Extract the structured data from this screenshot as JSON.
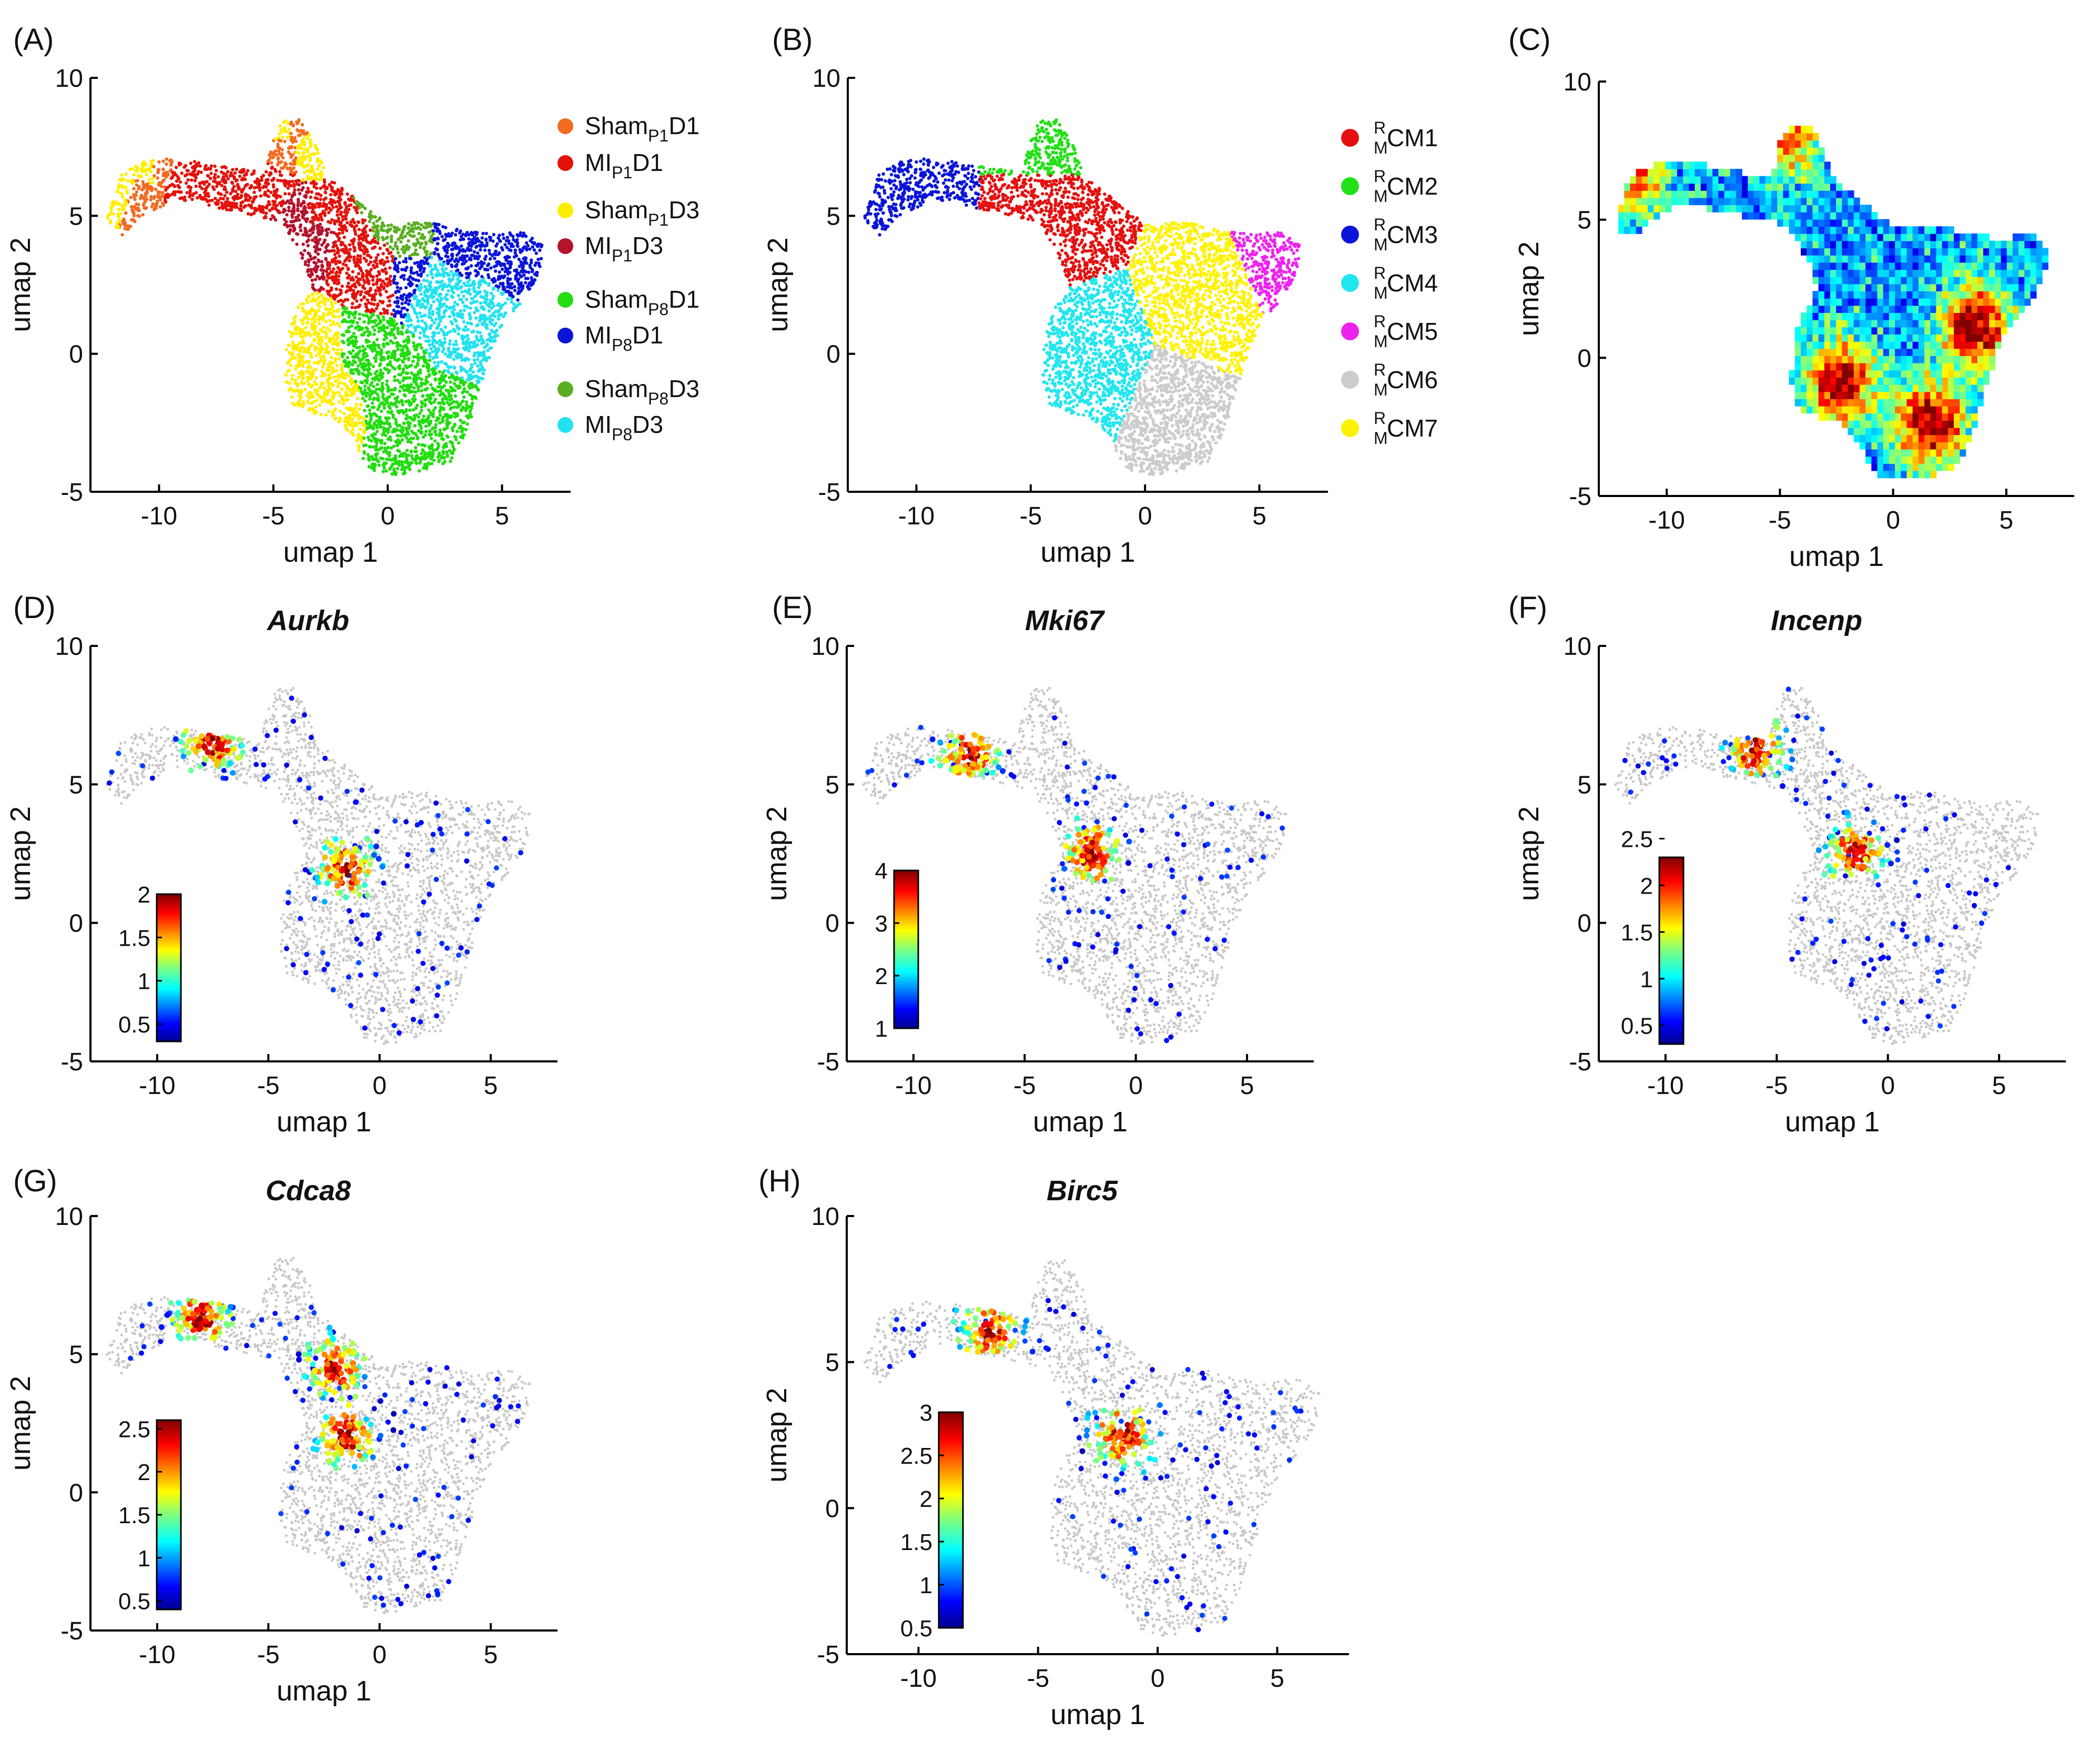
{
  "figure": {
    "background": "#ffffff"
  },
  "colors": {
    "Sham_P1D1": "#f26b21",
    "MI_P1D1": "#e3120b",
    "Sham_P1D3": "#ffee00",
    "MI_P1D3": "#b5122d",
    "Sham_P8D1": "#22dd10",
    "MI_P8D1": "#0a14d8",
    "Sham_P8D3": "#5aae22",
    "MI_P8D3": "#22e2f0",
    "RMCM1": "#e51010",
    "RMCM2": "#22e016",
    "RMCM3": "#0a14d8",
    "RMCM4": "#22e6ee",
    "RMCM5": "#ee22ee",
    "RMCM6": "#cccccc",
    "RMCM7": "#fff200",
    "background_cells": "#c8c8c8"
  },
  "chart_data": [
    {
      "panel": "A",
      "label": "(A)",
      "type": "scatter",
      "title": "",
      "xlabel": "umap 1",
      "ylabel": "umap 2",
      "xlim": [
        -13,
        8
      ],
      "ylim": [
        -5,
        10
      ],
      "xticks": [
        "-10",
        "-5",
        "0",
        "5"
      ],
      "yticks": [
        "10",
        "5",
        "0",
        "-5"
      ],
      "legend": {
        "placement": "right",
        "entries": [
          {
            "base": "Sham",
            "sub": "P1",
            "tail": "D1",
            "color": "#f26b21"
          },
          {
            "base": "MI",
            "sub": "P1",
            "tail": "D1",
            "color": "#e3120b"
          },
          {
            "base": "Sham",
            "sub": "P1",
            "tail": "D3",
            "color": "#ffee00"
          },
          {
            "base": "MI",
            "sub": "P1",
            "tail": "D3",
            "color": "#b5122d"
          },
          {
            "base": "Sham",
            "sub": "P8",
            "tail": "D1",
            "color": "#22dd10"
          },
          {
            "base": "MI",
            "sub": "P8",
            "tail": "D1",
            "color": "#0a14d8"
          },
          {
            "base": "Sham",
            "sub": "P8",
            "tail": "D3",
            "color": "#5aae22"
          },
          {
            "base": "MI",
            "sub": "P8",
            "tail": "D3",
            "color": "#22e2f0"
          }
        ]
      },
      "series": [
        {
          "name": "Sham P1 D1",
          "x": [
            -11,
            -10,
            -4.5,
            -4
          ],
          "y": [
            5.8,
            6.8,
            7.5,
            8.1
          ]
        },
        {
          "name": "MI P1 D1",
          "x": [
            -9,
            -7,
            -5,
            -3,
            -1.5,
            -0.5
          ],
          "y": [
            6.5,
            6.2,
            6,
            5,
            4,
            3
          ]
        },
        {
          "name": "Sham P1 D3",
          "x": [
            -11.5,
            -10.5,
            -4.5,
            -3.5,
            -3,
            -2.5
          ],
          "y": [
            6,
            6.8,
            8,
            7.5,
            0,
            -1.5
          ]
        },
        {
          "name": "MI P1 D3",
          "x": [
            -4,
            -3
          ],
          "y": [
            5,
            4.5
          ]
        },
        {
          "name": "Sham P8 D1",
          "x": [
            -1,
            0,
            1,
            2,
            3
          ],
          "y": [
            0,
            -1,
            -2.5,
            -3.5,
            -2.5
          ]
        },
        {
          "name": "MI P8 D1",
          "x": [
            1,
            3,
            5,
            6
          ],
          "y": [
            3,
            4,
            4.5,
            4
          ]
        },
        {
          "name": "Sham P8 D3",
          "x": [
            0,
            1
          ],
          "y": [
            5,
            4
          ]
        },
        {
          "name": "MI P8 D3",
          "x": [
            1,
            2,
            3,
            4
          ],
          "y": [
            4,
            2.5,
            1.5,
            0.5
          ]
        }
      ]
    },
    {
      "panel": "B",
      "label": "(B)",
      "type": "scatter",
      "title": "",
      "xlabel": "umap 1",
      "ylabel": "umap 2",
      "xlim": [
        -13,
        8
      ],
      "ylim": [
        -5,
        10
      ],
      "xticks": [
        "-10",
        "-5",
        "0",
        "5"
      ],
      "yticks": [
        "10",
        "5",
        "0",
        "-5"
      ],
      "legend": {
        "placement": "right",
        "entries": [
          {
            "sup": "R",
            "sub": "M",
            "tail": "CM1",
            "color": "#e51010"
          },
          {
            "sup": "R",
            "sub": "M",
            "tail": "CM2",
            "color": "#22e016"
          },
          {
            "sup": "R",
            "sub": "M",
            "tail": "CM3",
            "color": "#0a14d8"
          },
          {
            "sup": "R",
            "sub": "M",
            "tail": "CM4",
            "color": "#22e6ee"
          },
          {
            "sup": "R",
            "sub": "M",
            "tail": "CM5",
            "color": "#ee22ee"
          },
          {
            "sup": "R",
            "sub": "M",
            "tail": "CM6",
            "color": "#cccccc"
          },
          {
            "sup": "R",
            "sub": "M",
            "tail": "CM7",
            "color": "#fff200"
          }
        ]
      },
      "clusters": [
        {
          "name": "RMCM1",
          "center": [
            -4,
            5.5
          ]
        },
        {
          "name": "RMCM2",
          "center": [
            -4,
            7.5
          ]
        },
        {
          "name": "RMCM3",
          "center": [
            -10.5,
            6
          ]
        },
        {
          "name": "RMCM4",
          "center": [
            -2.5,
            -0.5
          ]
        },
        {
          "name": "RMCM5",
          "center": [
            6,
            3.5
          ]
        },
        {
          "name": "RMCM6",
          "center": [
            1.5,
            -2.5
          ]
        },
        {
          "name": "RMCM7",
          "center": [
            3,
            2
          ]
        }
      ]
    },
    {
      "panel": "C",
      "label": "(C)",
      "type": "heatmap",
      "title": "",
      "xlabel": "umap 1",
      "ylabel": "umap 2",
      "xlim": [
        -13,
        8
      ],
      "ylim": [
        -5,
        10
      ],
      "xticks": [
        "-10",
        "-5",
        "0",
        "5"
      ],
      "yticks": [
        "10",
        "5",
        "0",
        "-5"
      ],
      "colormap": "jet",
      "hotspots": [
        {
          "x": 1.5,
          "y": -2.5,
          "level": "high"
        },
        {
          "x": -2.5,
          "y": -1,
          "level": "high"
        },
        {
          "x": 3.5,
          "y": 1,
          "level": "high"
        },
        {
          "x": -11.5,
          "y": 6.5,
          "level": "medium"
        },
        {
          "x": -4.5,
          "y": 8,
          "level": "medium"
        }
      ]
    },
    {
      "panel": "D",
      "label": "(D)",
      "type": "scatter",
      "title": "Aurkb",
      "xlabel": "umap 1",
      "ylabel": "umap 2",
      "xlim": [
        -13,
        8
      ],
      "ylim": [
        -5,
        10
      ],
      "xticks": [
        "-10",
        "-5",
        "0",
        "5"
      ],
      "yticks": [
        "10",
        "5",
        "0",
        "-5"
      ],
      "colorbar": {
        "range": [
          0.3,
          2.0
        ],
        "ticks": [
          "2",
          "1.5",
          "1",
          "0.5"
        ],
        "placement": "lower-left"
      },
      "expression_regions": [
        {
          "x": -1.5,
          "y": 2,
          "level": "high"
        },
        {
          "x": -7.5,
          "y": 6.5,
          "level": "high"
        }
      ]
    },
    {
      "panel": "E",
      "label": "(E)",
      "type": "scatter",
      "title": "Mki67",
      "xlabel": "umap 1",
      "ylabel": "umap 2",
      "xlim": [
        -13,
        8
      ],
      "ylim": [
        -5,
        10
      ],
      "xticks": [
        "-10",
        "-5",
        "0",
        "5"
      ],
      "yticks": [
        "10",
        "5",
        "0",
        "-5"
      ],
      "colorbar": {
        "range": [
          1,
          4
        ],
        "ticks": [
          "4",
          "3",
          "2",
          "1"
        ],
        "placement": "lower-left"
      },
      "expression_regions": [
        {
          "x": -2,
          "y": 2.5,
          "level": "medium"
        },
        {
          "x": -7.5,
          "y": 6,
          "level": "medium"
        }
      ]
    },
    {
      "panel": "F",
      "label": "(F)",
      "type": "scatter",
      "title": "Incenp",
      "xlabel": "umap 1",
      "ylabel": "umap 2",
      "xlim": [
        -13,
        8
      ],
      "ylim": [
        -5,
        10
      ],
      "xticks": [
        "-10",
        "-5",
        "0",
        "5"
      ],
      "yticks": [
        "10",
        "5",
        "0",
        "-5"
      ],
      "colorbar": {
        "range": [
          0.3,
          2.3
        ],
        "ticks": [
          "2.5",
          "2",
          "1.5",
          "1",
          "0.5"
        ],
        "placement": "lower-left"
      },
      "expression_regions": [
        {
          "x": -1.5,
          "y": 2.5,
          "level": "high"
        },
        {
          "x": -6,
          "y": 6.2,
          "level": "high"
        }
      ]
    },
    {
      "panel": "G",
      "label": "(G)",
      "type": "scatter",
      "title": "Cdca8",
      "xlabel": "umap 1",
      "ylabel": "umap 2",
      "xlim": [
        -13,
        8
      ],
      "ylim": [
        -5,
        10
      ],
      "xticks": [
        "-10",
        "-5",
        "0",
        "5"
      ],
      "yticks": [
        "10",
        "5",
        "0",
        "-5"
      ],
      "colorbar": {
        "range": [
          0.4,
          2.6
        ],
        "ticks": [
          "2.5",
          "2",
          "1.5",
          "1",
          "0.5"
        ],
        "placement": "lower-left"
      },
      "expression_regions": [
        {
          "x": -8,
          "y": 6.3,
          "level": "high"
        },
        {
          "x": -1.5,
          "y": 2,
          "level": "high"
        },
        {
          "x": -2,
          "y": 4.5,
          "level": "high"
        }
      ]
    },
    {
      "panel": "H",
      "label": "(H)",
      "type": "scatter",
      "title": "Birc5",
      "xlabel": "umap 1",
      "ylabel": "umap 2",
      "xlim": [
        -13,
        8
      ],
      "ylim": [
        -5,
        10
      ],
      "xticks": [
        "-10",
        "-5",
        "0",
        "5"
      ],
      "yticks": [
        "10",
        "5",
        "0",
        "-5"
      ],
      "colorbar": {
        "range": [
          0.5,
          3.0
        ],
        "ticks": [
          "3",
          "2.5",
          "2",
          "1.5",
          "1",
          "0.5"
        ],
        "placement": "lower-left"
      },
      "expression_regions": [
        {
          "x": -7,
          "y": 6,
          "level": "high"
        },
        {
          "x": -1.5,
          "y": 2.5,
          "level": "high"
        }
      ]
    }
  ]
}
